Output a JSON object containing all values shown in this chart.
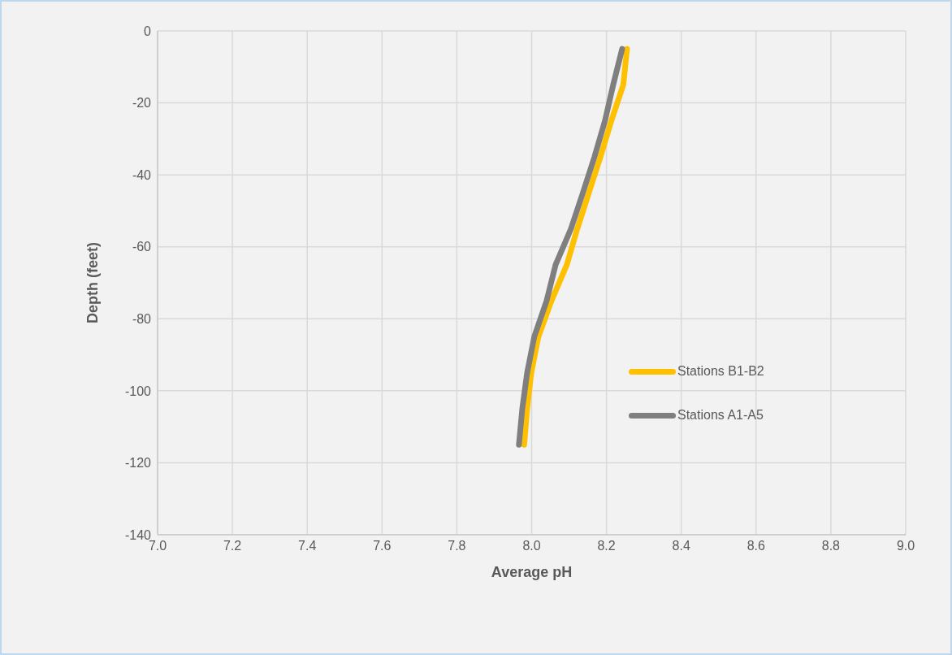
{
  "chart_data": {
    "type": "line",
    "xlabel": "Average pH",
    "ylabel": "Depth (feet)",
    "xlim": [
      7.0,
      9.0
    ],
    "xticks": [
      {
        "value": 7.0,
        "label": "7.0"
      },
      {
        "value": 7.2,
        "label": "7.2"
      },
      {
        "value": 7.4,
        "label": "7.4"
      },
      {
        "value": 7.6,
        "label": "7.6"
      },
      {
        "value": 7.8,
        "label": "7.8"
      },
      {
        "value": 8.0,
        "label": "8.0"
      },
      {
        "value": 8.2,
        "label": "8.2"
      },
      {
        "value": 8.4,
        "label": "8.4"
      },
      {
        "value": 8.6,
        "label": "8.6"
      },
      {
        "value": 8.8,
        "label": "8.8"
      },
      {
        "value": 9.0,
        "label": "9.0"
      }
    ],
    "ylim": [
      -140,
      0
    ],
    "yticks": [
      -140,
      -120,
      -100,
      -80,
      -60,
      -40,
      -20,
      0
    ],
    "grid": true,
    "legend": "right",
    "marker": "none",
    "line_style": "solid",
    "series": [
      {
        "name": "Stations B1-B2",
        "color": "#ffc000",
        "x": [
          8.255,
          8.245,
          8.213,
          8.184,
          8.153,
          8.122,
          8.094,
          8.053,
          8.018,
          7.999,
          7.988,
          7.98
        ],
        "values": [
          -5,
          -15,
          -25,
          -35,
          -45,
          -55,
          -65,
          -75,
          -85,
          -95,
          -105,
          -115
        ]
      },
      {
        "name": "Stations A1-A5",
        "color": "#7f7f7f",
        "x": [
          8.242,
          8.218,
          8.196,
          8.168,
          8.137,
          8.105,
          8.064,
          8.04,
          8.007,
          7.988,
          7.975,
          7.966
        ],
        "values": [
          -5,
          -15,
          -25,
          -35,
          -45,
          -55,
          -65,
          -75,
          -85,
          -95,
          -105,
          -115
        ]
      }
    ]
  }
}
